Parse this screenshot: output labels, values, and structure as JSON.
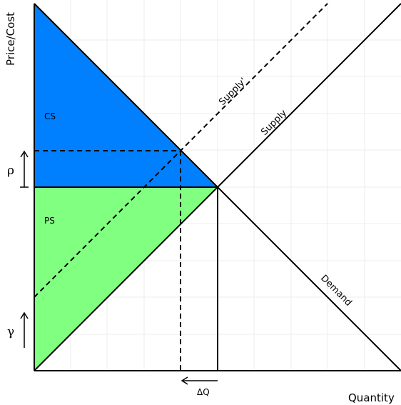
{
  "axes": {
    "y_label": "Price/Cost",
    "x_label": "Quantity"
  },
  "curves": {
    "supply": "Supply",
    "supply_shifted": "Supply'",
    "demand": "Demand"
  },
  "areas": {
    "consumer_surplus": "CS",
    "producer_surplus": "PS"
  },
  "markers": {
    "rho": "ρ",
    "gamma": "γ",
    "delta_q": "ΔQ"
  },
  "colors": {
    "consumer_surplus_fill": "#0080ff",
    "producer_surplus_fill": "#80ff80",
    "line": "#000000",
    "grid": "#ececec"
  }
}
